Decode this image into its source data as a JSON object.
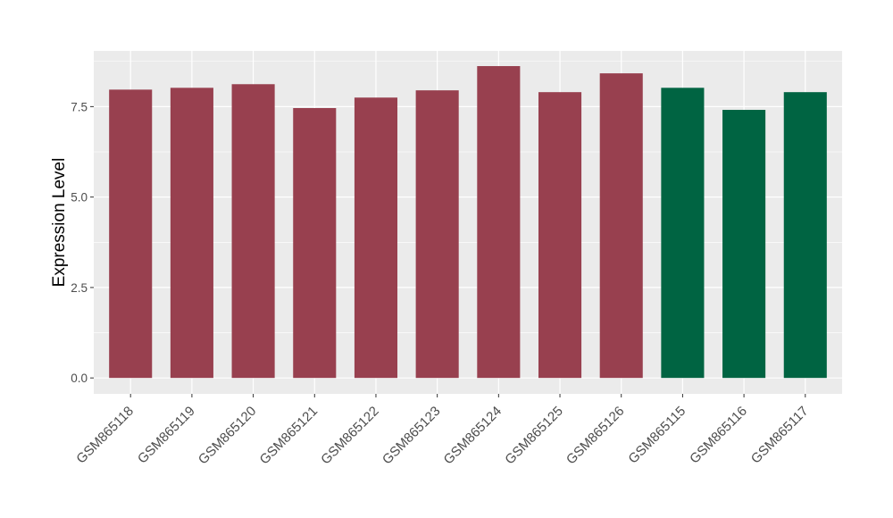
{
  "chart_data": {
    "type": "bar",
    "y_label": "Expression Level",
    "categories": [
      "GSM865118",
      "GSM865119",
      "GSM865120",
      "GSM865121",
      "GSM865122",
      "GSM865123",
      "GSM865124",
      "GSM865125",
      "GSM865126",
      "GSM865115",
      "GSM865116",
      "GSM865117"
    ],
    "values": [
      7.97,
      8.02,
      8.12,
      7.46,
      7.75,
      7.95,
      8.62,
      7.9,
      8.42,
      8.02,
      7.41,
      7.9
    ],
    "colors": [
      "#98404f",
      "#98404f",
      "#98404f",
      "#98404f",
      "#98404f",
      "#98404f",
      "#98404f",
      "#98404f",
      "#98404f",
      "#006442",
      "#006442",
      "#006442"
    ],
    "ylim": [
      -0.44,
      9.04
    ],
    "yticks": [
      {
        "value": 0,
        "label": "0.0"
      },
      2.5,
      {
        "value": 5,
        "label": "5.0"
      },
      7.5
    ],
    "minor_yticks": [
      1.25,
      3.75,
      6.25,
      8.75
    ],
    "grid": true
  }
}
